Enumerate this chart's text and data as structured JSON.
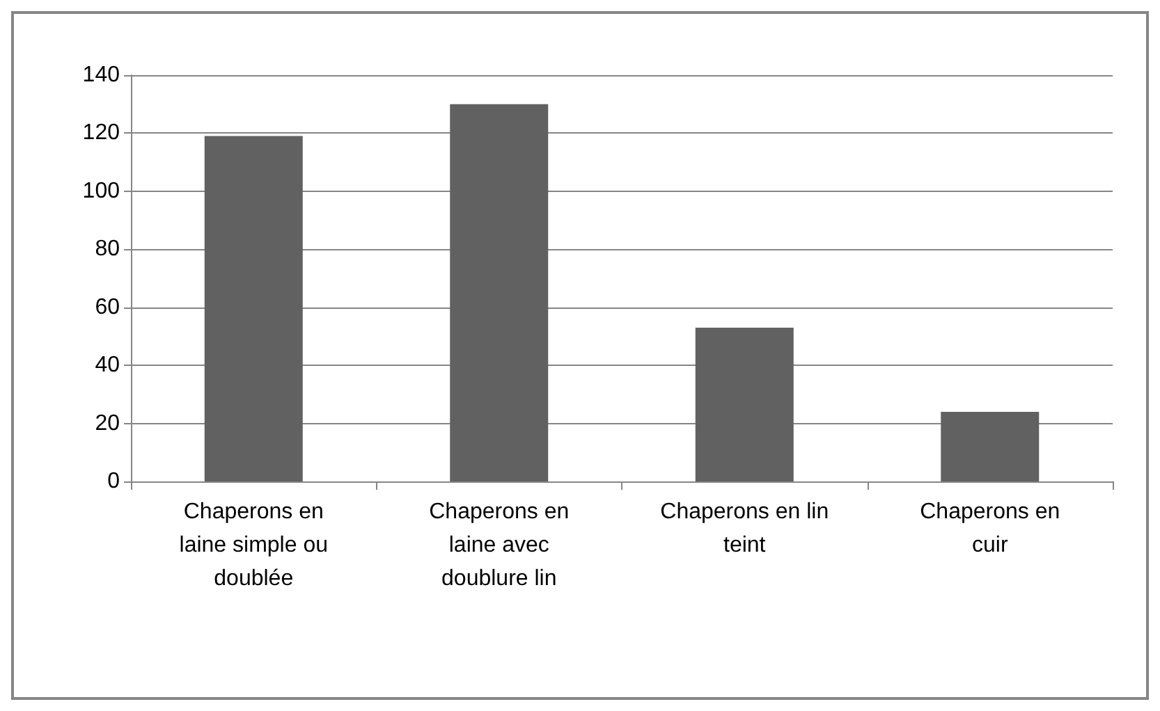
{
  "chart_data": {
    "type": "bar",
    "categories": [
      "Chaperons en laine simple ou doublée",
      "Chaperons en laine avec doublure lin",
      "Chaperons en lin teint",
      "Chaperons en cuir"
    ],
    "values": [
      119,
      130,
      53,
      24
    ],
    "color": "#616161",
    "ylim": [
      0,
      140
    ],
    "yticks": [
      0,
      20,
      40,
      60,
      80,
      100,
      120,
      140
    ],
    "grid": "y"
  }
}
